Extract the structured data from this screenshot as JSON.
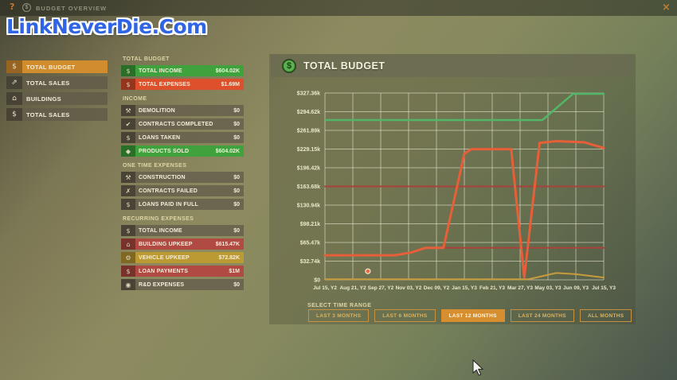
{
  "watermark": "LinkNeverDie.Com",
  "topbar": {
    "title": "BUDGET OVERVIEW",
    "help_glyph": "?",
    "coin_glyph": "$",
    "close_glyph": "×"
  },
  "sidebar": {
    "items": [
      {
        "label": "TOTAL BUDGET",
        "icon": "coin-icon",
        "glyph": "$",
        "active": true
      },
      {
        "label": "TOTAL SALES",
        "icon": "sales-chart-icon",
        "glyph": "⇗",
        "active": false
      },
      {
        "label": "BUILDINGS",
        "icon": "building-icon",
        "glyph": "⌂",
        "active": false
      },
      {
        "label": "TOTAL SALES",
        "icon": "money-icon",
        "glyph": "$",
        "active": false
      }
    ]
  },
  "budget_panel": {
    "sections": [
      {
        "title": "TOTAL BUDGET",
        "rows": [
          {
            "label": "TOTAL INCOME",
            "value": "$604.02K",
            "variant": "green",
            "icon": "income-coins-icon",
            "glyph": "$"
          },
          {
            "label": "TOTAL EXPENSES",
            "value": "$1.69M",
            "variant": "red",
            "icon": "expenses-coins-icon",
            "glyph": "$"
          }
        ]
      },
      {
        "title": "INCOME",
        "rows": [
          {
            "label": "DEMOLITION",
            "value": "$0",
            "variant": "neutral",
            "icon": "hammer-icon",
            "glyph": "⚒"
          },
          {
            "label": "CONTRACTS COMPLETED",
            "value": "$0",
            "variant": "neutral",
            "icon": "contract-check-icon",
            "glyph": "✔"
          },
          {
            "label": "LOANS TAKEN",
            "value": "$0",
            "variant": "neutral",
            "icon": "loan-icon",
            "glyph": "$"
          },
          {
            "label": "PRODUCTS SOLD",
            "value": "$604.02K",
            "variant": "green",
            "icon": "product-basket-icon",
            "glyph": "◆"
          }
        ]
      },
      {
        "title": "ONE TIME EXPENSES",
        "rows": [
          {
            "label": "CONSTRUCTION",
            "value": "$0",
            "variant": "neutral",
            "icon": "construction-tools-icon",
            "glyph": "⚒"
          },
          {
            "label": "CONTRACTS FAILED",
            "value": "$0",
            "variant": "neutral",
            "icon": "contract-fail-icon",
            "glyph": "✗"
          },
          {
            "label": "LOANS PAID IN FULL",
            "value": "$0",
            "variant": "neutral",
            "icon": "loan-paid-icon",
            "glyph": "$"
          }
        ]
      },
      {
        "title": "RECURRING EXPENSES",
        "rows": [
          {
            "label": "TOTAL INCOME",
            "value": "$0",
            "variant": "neutral",
            "icon": "income-coins-icon",
            "glyph": "$"
          },
          {
            "label": "BUILDING UPKEEP",
            "value": "$615.47K",
            "variant": "dred",
            "icon": "building-icon",
            "glyph": "⌂"
          },
          {
            "label": "VEHICLE UPKEEP",
            "value": "$72.82K",
            "variant": "gold",
            "icon": "vehicle-icon",
            "glyph": "⚙"
          },
          {
            "label": "LOAN PAYMENTS",
            "value": "$1M",
            "variant": "dred",
            "icon": "loan-icon",
            "glyph": "$"
          },
          {
            "label": "R&D EXPENSES",
            "value": "$0",
            "variant": "neutral",
            "icon": "research-icon",
            "glyph": "◉"
          }
        ]
      }
    ]
  },
  "chart_panel": {
    "title": "TOTAL BUDGET",
    "coin_glyph": "$",
    "select_label": "SELECT TIME RANGE",
    "buttons": [
      {
        "label": "LAST 3 MONTHS",
        "active": false
      },
      {
        "label": "LAST 6 MONTHS",
        "active": false
      },
      {
        "label": "LAST 12 MONTHS",
        "active": true
      },
      {
        "label": "LAST 24 MONTHS",
        "active": false
      },
      {
        "label": "ALL MONTHS",
        "active": false
      }
    ]
  },
  "chart_data": {
    "type": "line",
    "title": "TOTAL BUDGET",
    "grid": true,
    "x_unit": "tick index into x_tick_labels (0-10)",
    "y_unit": "USD thousands",
    "ylim": [
      0,
      327.36
    ],
    "x_tick_labels": [
      "Jul 15, Y2",
      "Aug 21, Y2",
      "Sep 27, Y2",
      "Nov 03, Y2",
      "Dec 09, Y2",
      "Jan 15, Y3",
      "Feb 21, Y3",
      "Mar 27, Y3",
      "May 03, Y3",
      "Jun 09, Y3",
      "Jul 15, Y3"
    ],
    "y_tick_labels": [
      "$327.36k",
      "$294.62k",
      "$261.89k",
      "$229.15k",
      "$196.42k",
      "$163.68k",
      "$130.94k",
      "$98.21k",
      "$65.47k",
      "$32.74k",
      "$0"
    ],
    "series": [
      {
        "name": "flat-expense-high",
        "color": "#a8423a",
        "width": 2,
        "points": [
          [
            0,
            163.7
          ],
          [
            10,
            163.7
          ]
        ]
      },
      {
        "name": "flat-expense-low",
        "color": "#a8423a",
        "width": 2,
        "points": [
          [
            0,
            43
          ],
          [
            2.5,
            43
          ],
          [
            3.1,
            48
          ],
          [
            3.6,
            56
          ],
          [
            10,
            56
          ]
        ]
      },
      {
        "name": "vehicle-upkeep",
        "color": "#c89b3c",
        "width": 2,
        "points": [
          [
            0,
            1
          ],
          [
            7.3,
            1
          ],
          [
            8.3,
            12
          ],
          [
            9,
            10
          ],
          [
            10,
            4
          ]
        ]
      },
      {
        "name": "total-income",
        "color": "#53b567",
        "width": 2.5,
        "points": [
          [
            0,
            280
          ],
          [
            7.8,
            280
          ],
          [
            8.9,
            326
          ],
          [
            10,
            326
          ]
        ]
      },
      {
        "name": "total-expenses",
        "color": "#e65f38",
        "width": 3,
        "points": [
          [
            0,
            43
          ],
          [
            2.5,
            43
          ],
          [
            3.1,
            48
          ],
          [
            3.6,
            56
          ],
          [
            4.25,
            56
          ],
          [
            5,
            221
          ],
          [
            5.25,
            229
          ],
          [
            6.68,
            229
          ],
          [
            7.15,
            4
          ],
          [
            7.7,
            240
          ],
          [
            8.3,
            243
          ],
          [
            9.3,
            241
          ],
          [
            10,
            231
          ]
        ]
      }
    ],
    "marker": {
      "x": 1.54,
      "y": 15,
      "color": "#e66a40"
    }
  },
  "colors": {
    "accent_orange": "#d18c2e",
    "row_green": "#3fa23c",
    "row_red": "#de4f2b",
    "row_muted_red": "#b04a42",
    "row_gold": "#bb9a33",
    "watermark_blue": "#2f64e4"
  }
}
